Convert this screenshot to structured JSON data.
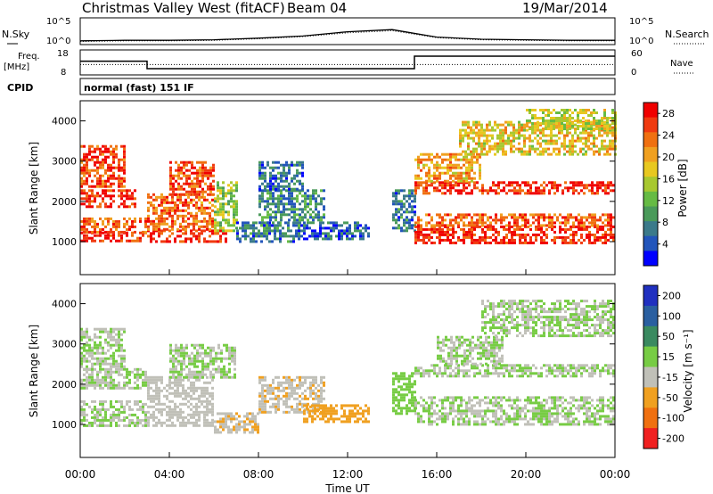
{
  "header": {
    "station": "Christmas Valley West (fitACF)",
    "beam": "Beam 04",
    "date": "19/Mar/2014"
  },
  "chart_data": [
    {
      "type": "line",
      "name": "noise-panel",
      "left_label": "N.Sky",
      "right_label": "N.Search",
      "yticks_left": [
        "10^5",
        "10^0"
      ],
      "yticks_right": [
        "10^5",
        "10^0"
      ],
      "yscale": "log",
      "ylim": [
        0,
        5
      ],
      "x_hours": [
        0,
        2,
        4,
        6,
        8,
        10,
        12,
        14,
        16,
        18,
        20,
        22,
        24
      ],
      "sky_log": [
        0.7,
        0.8,
        0.8,
        0.9,
        1.2,
        1.6,
        2.4,
        2.8,
        1.4,
        1.0,
        0.9,
        0.8,
        0.8
      ],
      "search_log": [
        0.6,
        0.7,
        0.7,
        0.8,
        1.1,
        1.5,
        2.2,
        2.6,
        1.3,
        0.9,
        0.8,
        0.7,
        0.7
      ]
    },
    {
      "type": "line",
      "name": "frequency-panel",
      "left_label": "Freq.",
      "left_units": "[MHz]",
      "right_label": "Nave",
      "yticks_left": [
        "18",
        "8"
      ],
      "yticks_right": [
        "60",
        "0"
      ],
      "freq_steps": [
        [
          0,
          3,
          13.5
        ],
        [
          3,
          15,
          10.5
        ],
        [
          15,
          24,
          15.5
        ]
      ],
      "nave_level": 25,
      "ylim": [
        8,
        18
      ]
    },
    {
      "type": "table",
      "name": "cpid-panel",
      "label": "CPID",
      "value": "normal (fast) 151 IF"
    },
    {
      "type": "heatmap",
      "name": "power",
      "ylabel": "Slant Range [km]",
      "ylim": [
        180,
        4500
      ],
      "yticks": [
        1000,
        2000,
        3000,
        4000
      ],
      "colorbar_label": "Power [dB]",
      "colorbar_ticks": [
        4,
        8,
        12,
        16,
        20,
        24,
        28
      ],
      "colorbar_range": [
        0,
        30
      ],
      "colors": [
        "#0000ff",
        "#2255bb",
        "#3b7a8a",
        "#4a9a5a",
        "#66bb44",
        "#a8c830",
        "#e8c820",
        "#f0a020",
        "#f07010",
        "#f03a10",
        "#f00000"
      ],
      "regions": [
        {
          "t": [
            0,
            3
          ],
          "r": [
            1000,
            1250
          ],
          "v": 28
        },
        {
          "t": [
            0,
            3
          ],
          "r": [
            1250,
            1600
          ],
          "v": 24
        },
        {
          "t": [
            0,
            2.5
          ],
          "r": [
            1900,
            2300
          ],
          "v": 27
        },
        {
          "t": [
            0,
            2
          ],
          "r": [
            2400,
            3400
          ],
          "v": 26
        },
        {
          "t": [
            3,
            6.5
          ],
          "r": [
            1000,
            1300
          ],
          "v": 27
        },
        {
          "t": [
            3,
            6
          ],
          "r": [
            1300,
            2200
          ],
          "v": 24
        },
        {
          "t": [
            4,
            6
          ],
          "r": [
            2200,
            3000
          ],
          "v": 25
        },
        {
          "t": [
            6,
            7
          ],
          "r": [
            1300,
            2500
          ],
          "v": 14
        },
        {
          "t": [
            7,
            10
          ],
          "r": [
            1000,
            1500
          ],
          "v": 7
        },
        {
          "t": [
            8,
            11
          ],
          "r": [
            1500,
            2300
          ],
          "v": 8
        },
        {
          "t": [
            8,
            10
          ],
          "r": [
            2300,
            3000
          ],
          "v": 6
        },
        {
          "t": [
            10,
            13
          ],
          "r": [
            1100,
            1500
          ],
          "v": 5
        },
        {
          "t": [
            14,
            15
          ],
          "r": [
            1300,
            2300
          ],
          "v": 7
        },
        {
          "t": [
            15,
            24
          ],
          "r": [
            1000,
            1400
          ],
          "v": 28
        },
        {
          "t": [
            15,
            24
          ],
          "r": [
            1400,
            1700
          ],
          "v": 24
        },
        {
          "t": [
            15,
            24
          ],
          "r": [
            2200,
            2500
          ],
          "v": 27
        },
        {
          "t": [
            15,
            18
          ],
          "r": [
            2500,
            3200
          ],
          "v": 20
        },
        {
          "t": [
            17,
            24
          ],
          "r": [
            3200,
            4000
          ],
          "v": 18
        },
        {
          "t": [
            20,
            24
          ],
          "r": [
            3800,
            4300
          ],
          "v": 16
        }
      ]
    },
    {
      "type": "heatmap",
      "name": "velocity",
      "ylabel": "Slant Range [km]",
      "xlabel": "Time UT",
      "xticks": [
        "00:00",
        "04:00",
        "08:00",
        "12:00",
        "16:00",
        "20:00",
        "00:00"
      ],
      "xlim": [
        0,
        24
      ],
      "ylim": [
        180,
        4500
      ],
      "yticks": [
        1000,
        2000,
        3000,
        4000
      ],
      "colorbar_label": "Velocity [m s⁻¹]",
      "colorbar_ticks": [
        200,
        100,
        50,
        15,
        -15,
        -50,
        -100,
        -200
      ],
      "colorbar_range": [
        -250,
        250
      ],
      "colors": [
        "#2030c0",
        "#2a5fa0",
        "#3a8a60",
        "#77cc44",
        "#c0c0b8",
        "#f0a020",
        "#f07010",
        "#f02020"
      ],
      "regions": [
        {
          "t": [
            0,
            3
          ],
          "r": [
            1000,
            1600
          ],
          "v": 0
        },
        {
          "t": [
            0,
            3
          ],
          "r": [
            1900,
            2400
          ],
          "v": 0
        },
        {
          "t": [
            0,
            2
          ],
          "r": [
            2400,
            3400
          ],
          "v": 0
        },
        {
          "t": [
            3,
            6
          ],
          "r": [
            1000,
            2200
          ],
          "v": -20
        },
        {
          "t": [
            4,
            7
          ],
          "r": [
            2200,
            3000
          ],
          "v": 0
        },
        {
          "t": [
            6,
            8
          ],
          "r": [
            800,
            1300
          ],
          "v": -60
        },
        {
          "t": [
            8,
            11
          ],
          "r": [
            1300,
            2200
          ],
          "v": -60
        },
        {
          "t": [
            10,
            13
          ],
          "r": [
            1100,
            1500
          ],
          "v": -70
        },
        {
          "t": [
            14,
            15
          ],
          "r": [
            1300,
            2300
          ],
          "v": 40
        },
        {
          "t": [
            15,
            24
          ],
          "r": [
            1000,
            1700
          ],
          "v": 0
        },
        {
          "t": [
            15,
            24
          ],
          "r": [
            2200,
            2500
          ],
          "v": 0
        },
        {
          "t": [
            16,
            19
          ],
          "r": [
            2500,
            3200
          ],
          "v": 0
        },
        {
          "t": [
            18,
            24
          ],
          "r": [
            3200,
            4100
          ],
          "v": 0
        }
      ]
    }
  ]
}
